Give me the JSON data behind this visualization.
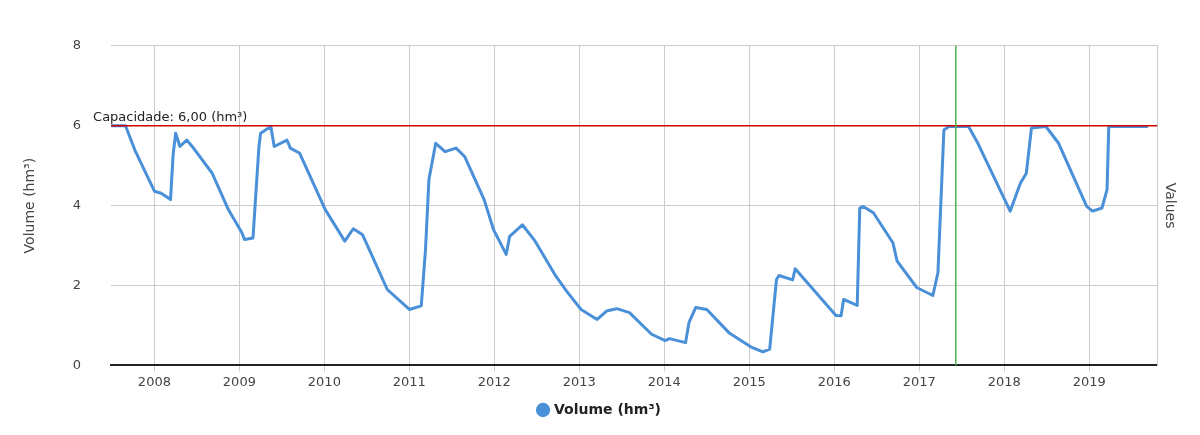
{
  "chart_data": {
    "type": "line",
    "ylabel": "Volume (hm³)",
    "y2label": "Values",
    "xlim": [
      2007.49,
      2019.8
    ],
    "xticks": [
      2008,
      2009,
      2010,
      2011,
      2012,
      2013,
      2014,
      2015,
      2016,
      2017,
      2018,
      2019
    ],
    "ylim": [
      0,
      8
    ],
    "yticks": [
      0,
      2,
      4,
      6,
      8
    ],
    "grid": true,
    "legend": "bottom",
    "marker": "none",
    "line_style": "solid",
    "ref_lines": [
      {
        "axis": "y",
        "value": 6,
        "label": "Capacidade: 6,00 (hm³)",
        "color": "#cc0000"
      },
      {
        "axis": "x",
        "value": 2017.43,
        "label": null,
        "color": "#4caf50"
      }
    ],
    "series": [
      {
        "name": "Volume (hm³)",
        "color": "#4a90d9",
        "x": [
          2007.49,
          2007.66,
          2007.77,
          2008.0,
          2008.08,
          2008.19,
          2008.22,
          2008.25,
          2008.3,
          2008.38,
          2008.46,
          2008.68,
          2008.87,
          2009.03,
          2009.06,
          2009.16,
          2009.23,
          2009.25,
          2009.37,
          2009.41,
          2009.56,
          2009.6,
          2009.71,
          2010.01,
          2010.24,
          2010.34,
          2010.45,
          2010.74,
          2011.0,
          2011.14,
          2011.19,
          2011.23,
          2011.31,
          2011.42,
          2011.55,
          2011.65,
          2011.88,
          2011.99,
          2012.14,
          2012.18,
          2012.33,
          2012.48,
          2012.71,
          2012.85,
          2013.02,
          2013.21,
          2013.32,
          2013.44,
          2013.59,
          2013.85,
          2014.01,
          2014.06,
          2014.25,
          2014.29,
          2014.37,
          2014.5,
          2014.76,
          2015.03,
          2015.16,
          2015.24,
          2015.32,
          2015.35,
          2015.51,
          2015.54,
          2016.02,
          2016.08,
          2016.11,
          2016.27,
          2016.3,
          2016.34,
          2016.46,
          2016.69,
          2016.74,
          2016.97,
          2017.16,
          2017.22,
          2017.29,
          2017.35,
          2017.58,
          2017.69,
          2018.07,
          2018.19,
          2018.26,
          2018.32,
          2018.49,
          2018.64,
          2018.97,
          2019.04,
          2019.15,
          2019.21,
          2019.23,
          2019.69
        ],
        "values": [
          6.0,
          6.0,
          5.39,
          4.36,
          4.31,
          4.15,
          5.27,
          5.81,
          5.48,
          5.64,
          5.44,
          4.81,
          3.9,
          3.32,
          3.15,
          3.19,
          5.48,
          5.81,
          5.98,
          5.48,
          5.64,
          5.44,
          5.31,
          3.9,
          3.11,
          3.42,
          3.27,
          1.9,
          1.4,
          1.49,
          2.9,
          4.65,
          5.56,
          5.35,
          5.44,
          5.23,
          4.15,
          3.4,
          2.78,
          3.23,
          3.52,
          3.11,
          2.28,
          1.86,
          1.4,
          1.15,
          1.36,
          1.42,
          1.32,
          0.78,
          0.62,
          0.67,
          0.57,
          1.07,
          1.45,
          1.4,
          0.82,
          0.45,
          0.34,
          0.41,
          2.15,
          2.25,
          2.14,
          2.42,
          1.25,
          1.24,
          1.65,
          1.5,
          3.94,
          3.98,
          3.82,
          3.07,
          2.61,
          1.95,
          1.75,
          2.32,
          5.89,
          5.98,
          5.98,
          5.56,
          3.86,
          4.56,
          4.81,
          5.94,
          5.98,
          5.56,
          3.98,
          3.86,
          3.94,
          4.4,
          5.98,
          5.98
        ]
      }
    ]
  }
}
